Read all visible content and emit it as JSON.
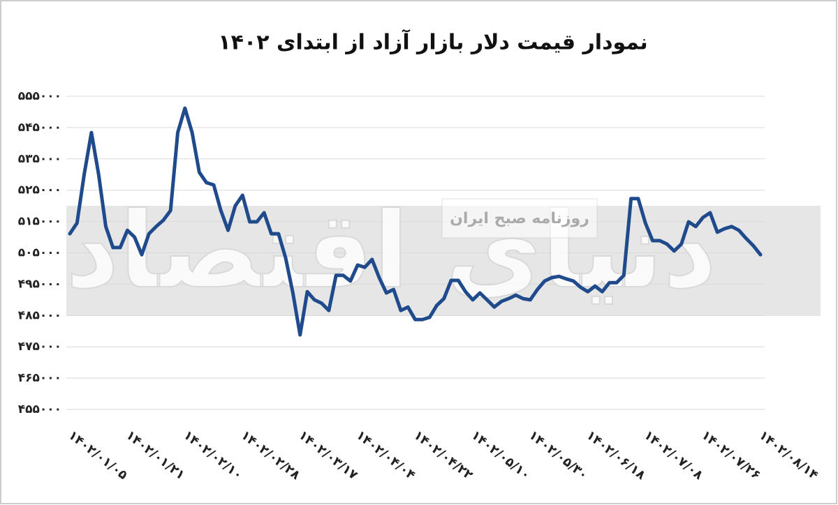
{
  "chart_data": {
    "type": "line",
    "title": "نمودار قیمت دلار بازار آزاد از ابتدای ۱۴۰۲",
    "annotations": [
      "روزنامه صبح ایران"
    ],
    "watermark": "دنیای اقتصاد",
    "color": "#1f4a8c",
    "grid": true,
    "categories": [
      "۱۴۰۲/۰۱/۰۵",
      null,
      null,
      null,
      null,
      null,
      null,
      null,
      "۱۴۰۲/۰۱/۲۱",
      null,
      null,
      null,
      null,
      null,
      null,
      null,
      "۱۴۰۲/۰۲/۱۰",
      null,
      null,
      null,
      null,
      null,
      null,
      null,
      "۱۴۰۲/۰۲/۲۸",
      null,
      null,
      null,
      null,
      null,
      null,
      null,
      "۱۴۰۲/۰۳/۱۷",
      null,
      null,
      null,
      null,
      null,
      null,
      null,
      "۱۴۰۲/۰۴/۰۴",
      null,
      null,
      null,
      null,
      null,
      null,
      null,
      "۱۴۰۲/۰۴/۲۲",
      null,
      null,
      null,
      null,
      null,
      null,
      null,
      "۱۴۰۲/۰۵/۱۰",
      null,
      null,
      null,
      null,
      null,
      null,
      null,
      "۱۴۰۲/۰۵/۳۰",
      null,
      null,
      null,
      null,
      null,
      null,
      null,
      "۱۴۰۲/۰۶/۱۸",
      null,
      null,
      null,
      null,
      null,
      null,
      null,
      "۱۴۰۲/۰۷/۰۸",
      null,
      null,
      null,
      null,
      null,
      null,
      null,
      "۱۴۰۲/۰۷/۲۶",
      null,
      null,
      null,
      null,
      null,
      null,
      null,
      "۱۴۰۲/۰۸/۱۴"
    ],
    "values": [
      511100,
      514500,
      530100,
      543400,
      530100,
      513400,
      506700,
      506700,
      512200,
      510000,
      504400,
      511100,
      513400,
      515400,
      518500,
      543400,
      551200,
      543400,
      530700,
      527400,
      526700,
      518500,
      512200,
      520000,
      523400,
      514900,
      514900,
      517800,
      511100,
      511100,
      503300,
      492200,
      478800,
      492600,
      490000,
      488900,
      486600,
      497800,
      497800,
      496000,
      501100,
      500400,
      502900,
      497100,
      492200,
      493300,
      486600,
      487700,
      483700,
      483700,
      484400,
      488200,
      490400,
      496200,
      496200,
      492600,
      490000,
      492200,
      490000,
      487700,
      489500,
      490400,
      491500,
      490400,
      490000,
      493300,
      496000,
      497100,
      497500,
      496700,
      496000,
      494000,
      492600,
      494400,
      492600,
      495500,
      495500,
      497800,
      522300,
      522300,
      514500,
      508900,
      508900,
      507800,
      505600,
      507800,
      514900,
      513400,
      516300,
      517800,
      511600,
      512700,
      513400,
      512200,
      509600,
      507300,
      504400
    ],
    "ylim": [
      455000,
      555000
    ],
    "yticks": [
      {
        "value": 555000,
        "label": "۵۵۵۰۰۰"
      },
      {
        "value": 545000,
        "label": "۵۴۵۰۰۰"
      },
      {
        "value": 535000,
        "label": "۵۳۵۰۰۰"
      },
      {
        "value": 525000,
        "label": "۵۲۵۰۰۰"
      },
      {
        "value": 515000,
        "label": "۵۱۵۰۰۰"
      },
      {
        "value": 505000,
        "label": "۵۰۵۰۰۰"
      },
      {
        "value": 495000,
        "label": "۴۹۵۰۰۰"
      },
      {
        "value": 485000,
        "label": "۴۸۵۰۰۰"
      },
      {
        "value": 475000,
        "label": "۴۷۵۰۰۰"
      },
      {
        "value": 465000,
        "label": "۴۶۵۰۰۰"
      },
      {
        "value": 455000,
        "label": "۴۵۵۰۰۰"
      }
    ]
  }
}
